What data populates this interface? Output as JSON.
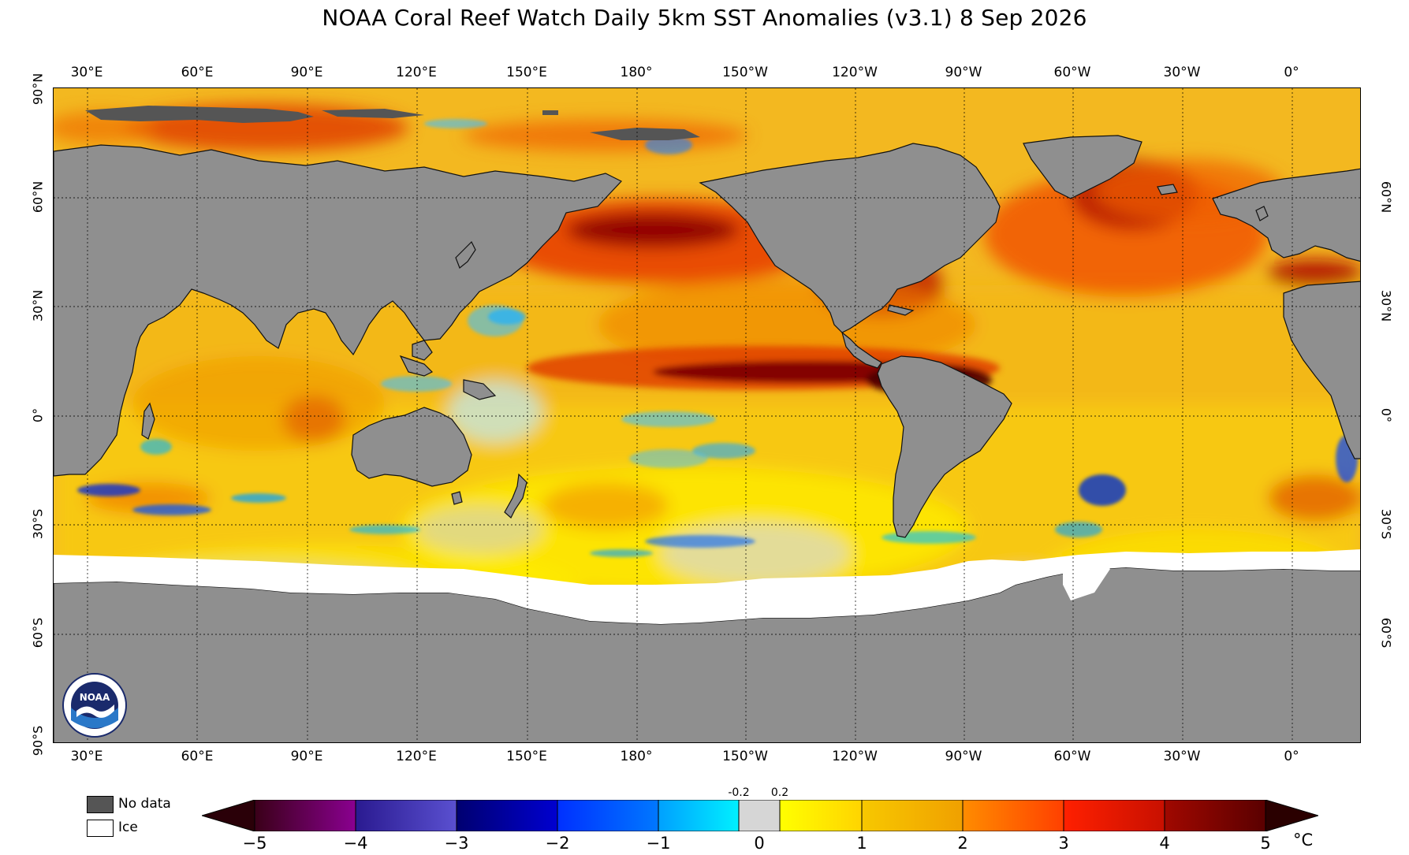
{
  "title": "NOAA Coral Reef Watch Daily 5km SST Anomalies  (v3.1)   8 Sep 2026",
  "map": {
    "projection": "equirectangular",
    "center_longitude": "~154°W",
    "longitude_labels": [
      "30°E",
      "60°E",
      "90°E",
      "120°E",
      "150°E",
      "180°",
      "150°W",
      "120°W",
      "90°W",
      "60°W",
      "30°W",
      "0°"
    ],
    "latitude_labels_left": [
      "90°N",
      "60°N",
      "30°N",
      "0°",
      "30°S",
      "60°S",
      "90°S"
    ],
    "latitude_labels_right": [
      "60°N",
      "30°N",
      "0°",
      "30°S",
      "60°S"
    ],
    "colors": {
      "land": "#8f8f8f",
      "no_data": "#555555",
      "ice": "#ffffff",
      "warm_max": "#3a0000",
      "cold_max": "#000050"
    },
    "features": [
      "strong warm anomaly (El Niño pattern) along equatorial eastern Pacific",
      "warm anomalies in North Pacific (~45°N)",
      "warm anomalies in North Atlantic and Mediterranean",
      "cool patches in Southern Ocean"
    ],
    "logo": "noaa-logo"
  },
  "legend": {
    "no_data_label": "No data",
    "ice_label": "Ice"
  },
  "colorbar": {
    "tick_labels": [
      "−5",
      "−4",
      "−3",
      "−2",
      "−1",
      "0",
      "1",
      "2",
      "3",
      "4",
      "5"
    ],
    "small_labels": [
      "-0.2",
      "0.2"
    ],
    "unit": "°C",
    "range": [
      -5,
      5
    ],
    "colors": [
      "#3a0018",
      "#5a0050",
      "#8a0090",
      "#2a1a90",
      "#4a38c8",
      "#000080",
      "#0000d0",
      "#0030ff",
      "#0078ff",
      "#00b4ff",
      "#00e0ff",
      "#d6d6d6",
      "#ffff00",
      "#ffe400",
      "#ffc800",
      "#f0b000",
      "#ff8c00",
      "#ff6000",
      "#ff3000",
      "#e01010",
      "#b01000",
      "#6a0000",
      "#3a0000"
    ]
  }
}
